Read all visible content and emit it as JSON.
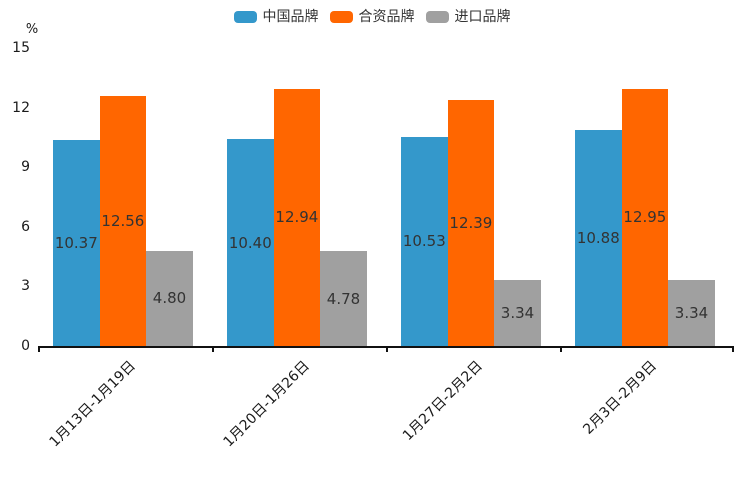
{
  "chart_data": {
    "type": "bar",
    "title": "",
    "unit_label": "%",
    "xlabel": "",
    "ylabel": "%",
    "ylim": [
      0,
      15
    ],
    "yticks": [
      0,
      3,
      6,
      9,
      12,
      15
    ],
    "grid": false,
    "legend_position": "top",
    "categories": [
      "1月13日-1月19日",
      "1月20日-1月26日",
      "1月27日-2月2日",
      "2月3日-2月9日"
    ],
    "series": [
      {
        "name": "中国品牌",
        "color": "#3498CB",
        "values": [
          10.37,
          10.4,
          10.53,
          10.88
        ]
      },
      {
        "name": "合资品牌",
        "color": "#FF6600",
        "values": [
          12.56,
          12.94,
          12.39,
          12.95
        ]
      },
      {
        "name": "进口品牌",
        "color": "#A0A0A0",
        "values": [
          4.8,
          4.78,
          3.34,
          3.34
        ]
      }
    ],
    "value_label_decimals": 2,
    "axis_color": "#111111"
  }
}
